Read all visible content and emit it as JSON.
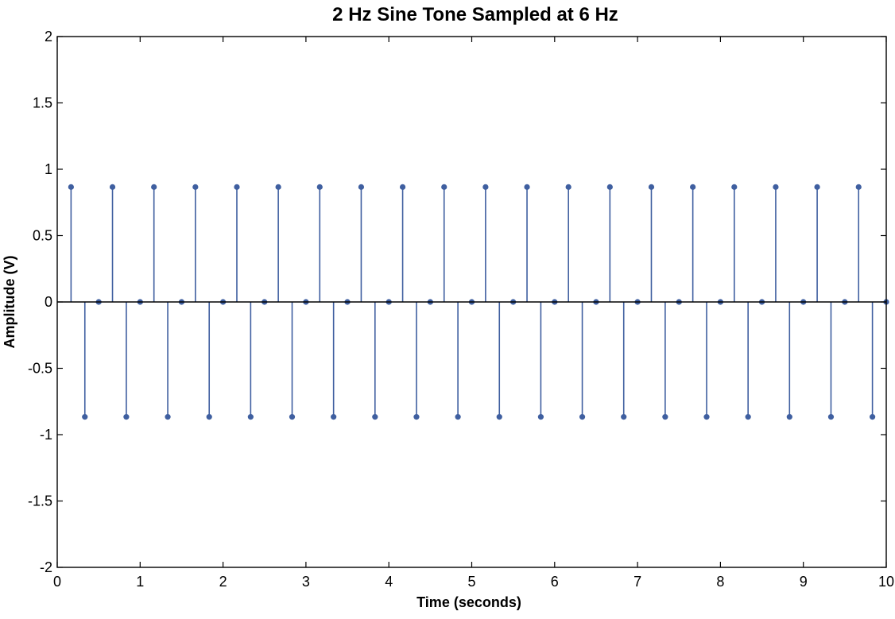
{
  "chart_data": {
    "type": "stem",
    "title": "2 Hz Sine Tone Sampled at 6 Hz",
    "xlabel": "Time (seconds)",
    "ylabel": "Amplitude (V)",
    "xlim": [
      0,
      10
    ],
    "ylim": [
      -2,
      2
    ],
    "xticks": [
      0,
      1,
      2,
      3,
      4,
      5,
      6,
      7,
      8,
      9,
      10
    ],
    "yticks": [
      -2,
      -1.5,
      -1,
      -0.5,
      0,
      0.5,
      1,
      1.5,
      2
    ],
    "xtick_labels": [
      "0",
      "1",
      "2",
      "3",
      "4",
      "5",
      "6",
      "7",
      "8",
      "9",
      "10"
    ],
    "ytick_labels": [
      "-2",
      "-1.5",
      "-1",
      "-0.5",
      "0",
      "0.5",
      "1",
      "1.5",
      "2"
    ],
    "grid": false,
    "color": "#3f5fa0",
    "series": [
      {
        "x": [
          0.1667,
          0.3333,
          0.5,
          0.6667,
          0.8333,
          1.0,
          1.1667,
          1.3333,
          1.5,
          1.6667,
          1.8333,
          2.0,
          2.1667,
          2.3333,
          2.5,
          2.6667,
          2.8333,
          3.0,
          3.1667,
          3.3333,
          3.5,
          3.6667,
          3.8333,
          4.0,
          4.1667,
          4.3333,
          4.5,
          4.6667,
          4.8333,
          5.0,
          5.1667,
          5.3333,
          5.5,
          5.6667,
          5.8333,
          6.0,
          6.1667,
          6.3333,
          6.5,
          6.6667,
          6.8333,
          7.0,
          7.1667,
          7.3333,
          7.5,
          7.6667,
          7.8333,
          8.0,
          8.1667,
          8.3333,
          8.5,
          8.6667,
          8.8333,
          9.0,
          9.1667,
          9.3333,
          9.5,
          9.6667,
          9.8333,
          10.0
        ],
        "y": [
          0.866,
          -0.866,
          0,
          0.866,
          -0.866,
          0,
          0.866,
          -0.866,
          0,
          0.866,
          -0.866,
          0,
          0.866,
          -0.866,
          0,
          0.866,
          -0.866,
          0,
          0.866,
          -0.866,
          0,
          0.866,
          -0.866,
          0,
          0.866,
          -0.866,
          0,
          0.866,
          -0.866,
          0,
          0.866,
          -0.866,
          0,
          0.866,
          -0.866,
          0,
          0.866,
          -0.866,
          0,
          0.866,
          -0.866,
          0,
          0.866,
          -0.866,
          0,
          0.866,
          -0.866,
          0,
          0.866,
          -0.866,
          0,
          0.866,
          -0.866,
          0,
          0.866,
          -0.866,
          0,
          0.866,
          -0.866,
          0
        ]
      }
    ]
  }
}
